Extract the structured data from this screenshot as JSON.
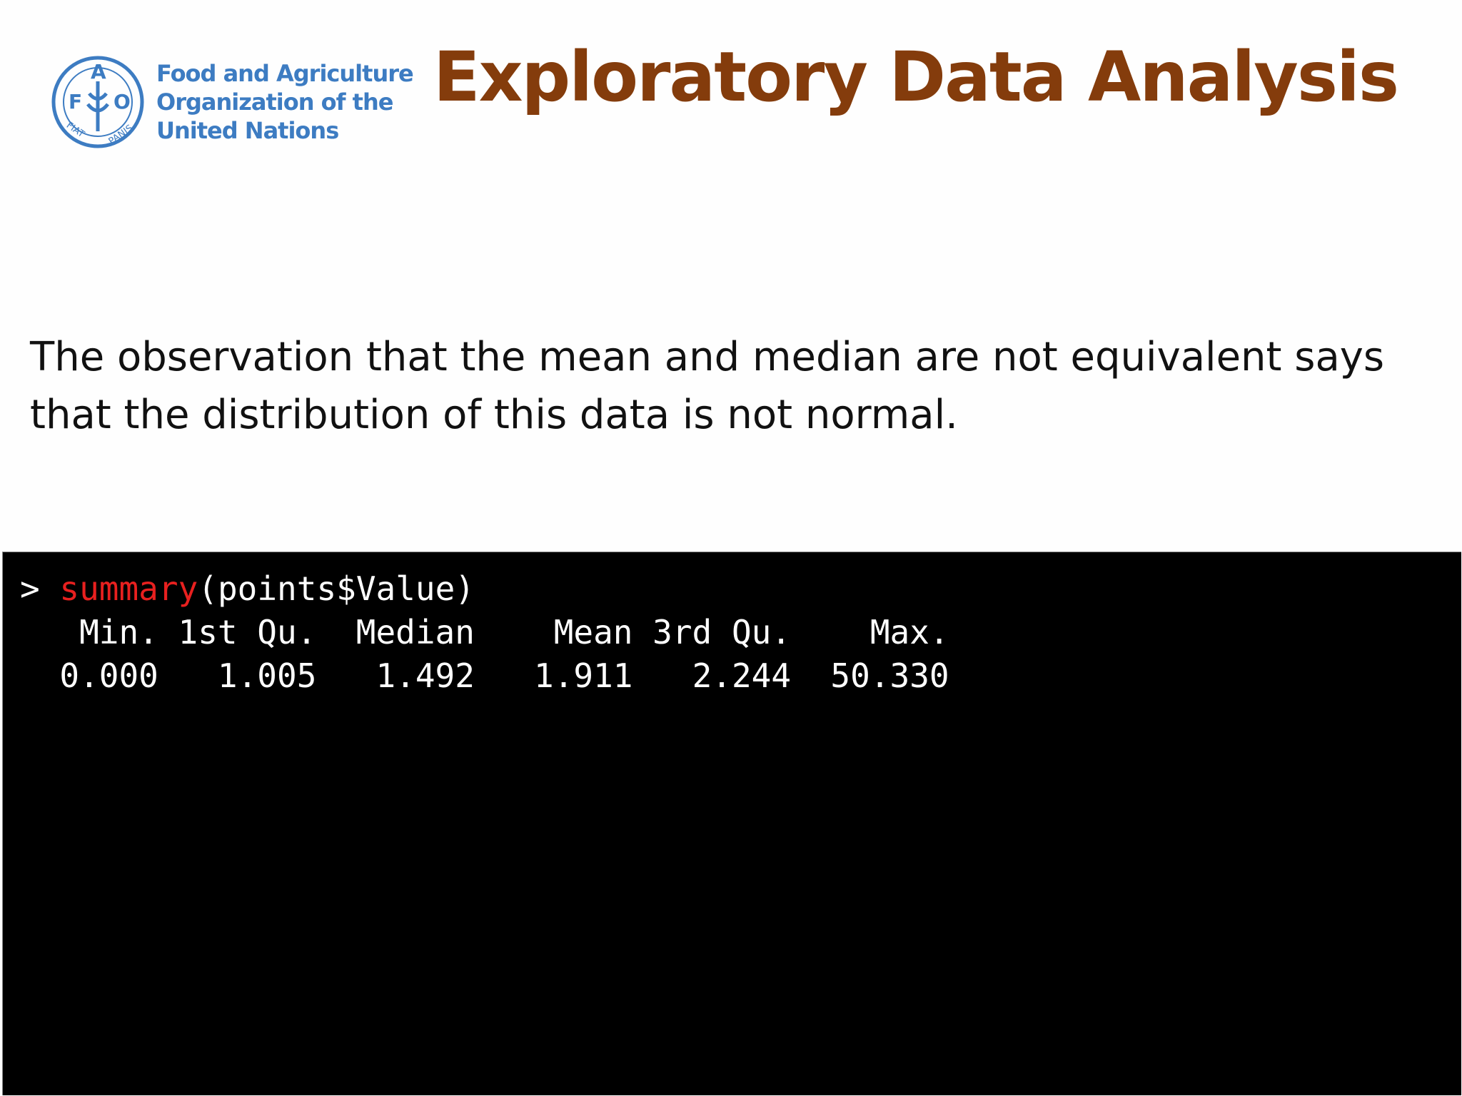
{
  "header": {
    "org_name": [
      "Food and Agriculture",
      "Organization of the",
      "United Nations"
    ],
    "logo_letters": [
      "F",
      "A",
      "O"
    ],
    "logo_motto": [
      "FIAT",
      "PANIS"
    ],
    "title": "Exploratory Data Analysis"
  },
  "body": {
    "lines": [
      "The observation that the mean and median are not equivalent says",
      "that the distribution of this data is not normal."
    ]
  },
  "console": {
    "prompt": ">",
    "function": "summary",
    "arguments": "(points$Value)",
    "headers": [
      "Min.",
      "1st Qu.",
      "Median",
      "Mean",
      "3rd Qu.",
      "Max."
    ],
    "values": [
      "0.000",
      "1.005",
      "1.492",
      "1.911",
      "2.244",
      "50.330"
    ]
  }
}
